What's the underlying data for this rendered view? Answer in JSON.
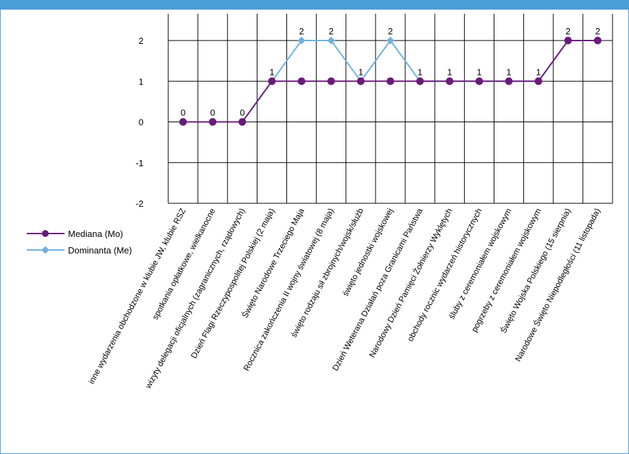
{
  "colors": {
    "frame": "#4c9ed9",
    "mediana": "#6a1b7a",
    "dominanta": "#6fb0dd",
    "grid": "#000000"
  },
  "legend": {
    "mediana": "Mediana (Mo)",
    "dominanta": "Dominanta (Me)"
  },
  "chart_data": {
    "type": "line",
    "ylim": [
      -2,
      2
    ],
    "yticks": [
      2,
      1,
      0,
      -1,
      -2
    ],
    "grid": true,
    "legend_position": "bottom-left",
    "categories": [
      "inne wydarzenia obchodzone w klubie JW, klubie RSZ",
      "spotkania opłatkowe, wielkanocne",
      "wizyty delegacji oficjalnych (zagranicznych, rządowych)",
      "Dzień Flagi Rzeczypospolitej Polskiej (2 maja)",
      "Święto Narodowe Trzeciego Maja",
      "Rocznica zakończenia II wojny światowej (8 maja)",
      "święto rodzaju sił zbrojnych/wojsk/służb",
      "święto jednostki wojskowej",
      "Dzień Weterana Działań poza Granicami Państwa",
      "Narodowy Dzień Pamięci Żołnierzy Wyklętych",
      "obchody rocznic wydarzeń historycznych",
      "śluby z ceremoniałem wojskowym",
      "pogrzeby z ceremoniałem wojskowym",
      "Święto Wojska Polskiego (15 sierpnia)",
      "Narodowe Święto Niepodległości (11 listopada)"
    ],
    "series": [
      {
        "name": "Mediana (Mo)",
        "values": [
          0,
          0,
          0,
          1,
          1,
          1,
          1,
          1,
          1,
          1,
          1,
          1,
          1,
          2,
          2
        ],
        "marker": "circle"
      },
      {
        "name": "Dominanta (Me)",
        "values": [
          0,
          0,
          0,
          1,
          2,
          2,
          1,
          2,
          1,
          1,
          1,
          1,
          1,
          2,
          2
        ],
        "marker": "diamond"
      }
    ],
    "data_labels": [
      0,
      0,
      0,
      1,
      2,
      2,
      1,
      2,
      1,
      1,
      1,
      1,
      1,
      2,
      2
    ]
  }
}
